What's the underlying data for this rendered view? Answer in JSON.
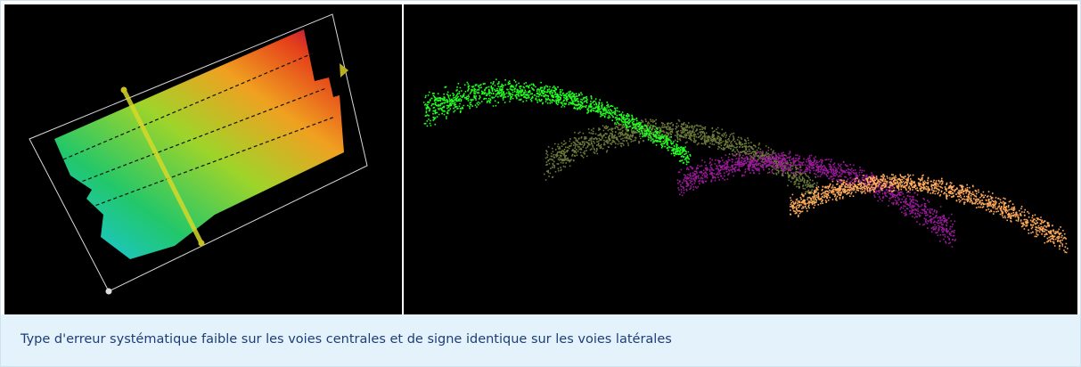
{
  "caption": "Type d'erreur systématique faible sur les voies centrales et de signe identique sur les voies latérales"
}
